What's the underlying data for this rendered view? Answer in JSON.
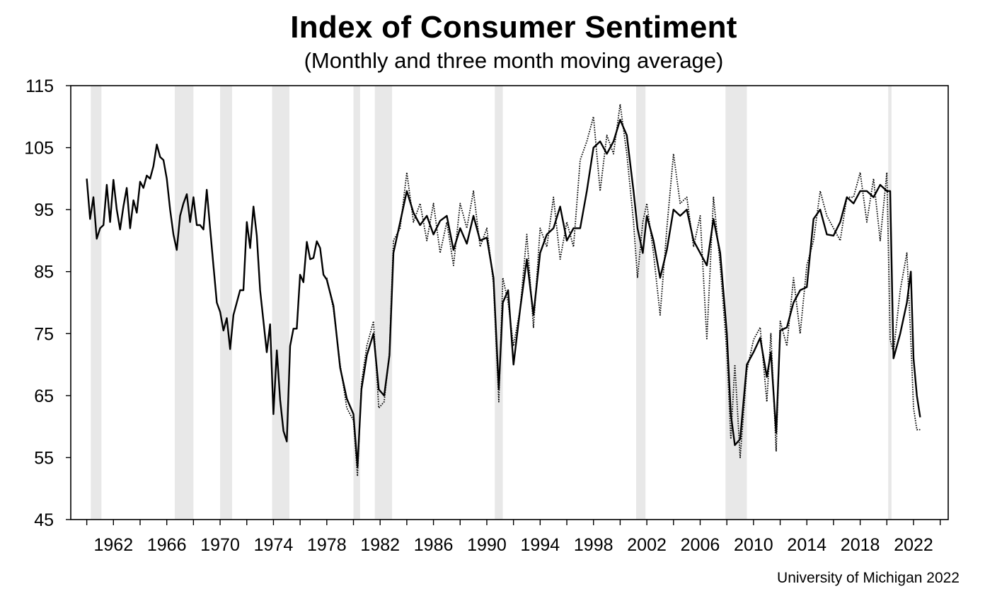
{
  "chart_data": {
    "type": "line",
    "title": "Index of Consumer Sentiment",
    "subtitle": "(Monthly and three month moving average)",
    "source": "University of Michigan 2022",
    "xlim": [
      1958.8,
      2024.6
    ],
    "ylim": [
      45,
      115
    ],
    "y_ticks": [
      45,
      55,
      65,
      75,
      85,
      95,
      105,
      115
    ],
    "x_ticks": [
      1962,
      1966,
      1970,
      1974,
      1978,
      1982,
      1986,
      1990,
      1994,
      1998,
      2002,
      2006,
      2010,
      2014,
      2018,
      2022
    ],
    "x_minor_ticks": [
      1960,
      1964,
      1968,
      1972,
      1976,
      1980,
      1984,
      1988,
      1992,
      1996,
      2000,
      2004,
      2008,
      2012,
      2016,
      2020,
      2024
    ],
    "grid": false,
    "legend": "none",
    "recessions": [
      [
        1960.3,
        1961.1
      ],
      [
        1966.6,
        1968.0
      ],
      [
        1970.0,
        1970.9
      ],
      [
        1973.9,
        1975.2
      ],
      [
        1980.0,
        1980.5
      ],
      [
        1981.6,
        1982.9
      ],
      [
        1990.6,
        1991.2
      ],
      [
        2001.2,
        2001.9
      ],
      [
        2007.9,
        2009.5
      ],
      [
        2020.1,
        2020.35
      ]
    ],
    "series": [
      {
        "style": "solid",
        "x": [
          1960.0,
          1960.25,
          1960.5,
          1960.75,
          1961.0,
          1961.25,
          1961.5,
          1961.75,
          1962.0,
          1962.25,
          1962.5,
          1962.75,
          1963.0,
          1963.25,
          1963.5,
          1963.75,
          1964.0,
          1964.25,
          1964.5,
          1964.75,
          1965.0,
          1965.25,
          1965.5,
          1965.75,
          1966.0,
          1966.25,
          1966.5,
          1966.75,
          1967.0,
          1967.25,
          1967.5,
          1967.75,
          1968.0,
          1968.25,
          1968.5,
          1968.75,
          1969.0,
          1969.25,
          1969.5,
          1969.75,
          1970.0,
          1970.25,
          1970.5,
          1970.75,
          1971.0,
          1971.25,
          1971.5,
          1971.75,
          1972.0,
          1972.25,
          1972.5,
          1972.75,
          1973.0,
          1973.25,
          1973.5,
          1973.75,
          1974.0,
          1974.25,
          1974.5,
          1974.75,
          1975.0,
          1975.25,
          1975.5,
          1975.75,
          1976.0,
          1976.25,
          1976.5,
          1976.75,
          1977.0,
          1977.25,
          1977.5,
          1977.75,
          1978.0,
          1978.5,
          1979.0,
          1979.5,
          1980.0,
          1980.3,
          1980.6,
          1981.0,
          1981.5,
          1981.9,
          1982.3,
          1982.7,
          1983.0,
          1983.5,
          1984.0,
          1984.5,
          1985.0,
          1985.5,
          1986.0,
          1986.5,
          1987.0,
          1987.5,
          1988.0,
          1988.5,
          1989.0,
          1989.5,
          1990.0,
          1990.5,
          1990.9,
          1991.2,
          1991.6,
          1992.0,
          1992.5,
          1993.0,
          1993.5,
          1994.0,
          1994.5,
          1995.0,
          1995.5,
          1996.0,
          1996.5,
          1997.0,
          1997.5,
          1998.0,
          1998.5,
          1999.0,
          1999.5,
          2000.0,
          2000.5,
          2001.0,
          2001.3,
          2001.7,
          2002.0,
          2002.5,
          2003.0,
          2003.5,
          2004.0,
          2004.5,
          2005.0,
          2005.5,
          2006.0,
          2006.5,
          2007.0,
          2007.5,
          2008.0,
          2008.3,
          2008.6,
          2009.0,
          2009.5,
          2010.0,
          2010.5,
          2011.0,
          2011.3,
          2011.7,
          2012.0,
          2012.5,
          2013.0,
          2013.5,
          2014.0,
          2014.5,
          2015.0,
          2015.5,
          2016.0,
          2016.5,
          2017.0,
          2017.5,
          2018.0,
          2018.5,
          2019.0,
          2019.5,
          2020.0,
          2020.25,
          2020.5,
          2021.0,
          2021.5,
          2021.8,
          2022.0,
          2022.25,
          2022.5
        ],
        "values": [
          100,
          93.5,
          97,
          90.3,
          92,
          92.5,
          99,
          93,
          99.8,
          95,
          91.8,
          95.5,
          98.5,
          92,
          96.5,
          94.5,
          99.5,
          98.5,
          100.5,
          100,
          102,
          105.5,
          103.5,
          103,
          100,
          95,
          91,
          88.5,
          94,
          96,
          97.5,
          93,
          97,
          92.5,
          92.5,
          91.8,
          98.2,
          92,
          86,
          80,
          78.5,
          75.5,
          77.5,
          72.5,
          78,
          80,
          82,
          82,
          93,
          88.8,
          95.5,
          90.8,
          82,
          77,
          72,
          76.5,
          62,
          72.3,
          64.3,
          59.3,
          57.6,
          73,
          75.8,
          75.8,
          84.5,
          83.3,
          89.8,
          87,
          87.2,
          89.9,
          88.8,
          84.5,
          83.7,
          79.5,
          69.5,
          64.5,
          62,
          53.5,
          66,
          71.5,
          75,
          66,
          65,
          71.5,
          88,
          93,
          98,
          94.5,
          92.5,
          94,
          91,
          93.2,
          94,
          88.5,
          92,
          89.5,
          94,
          90,
          90.5,
          84,
          66,
          80,
          82,
          70,
          79,
          87,
          78,
          88,
          91,
          92,
          95.5,
          90,
          92,
          92,
          98,
          105,
          106,
          104,
          106,
          109.5,
          107,
          98,
          92,
          88,
          94,
          90,
          84,
          88.5,
          95,
          94,
          95,
          90,
          88,
          86,
          93.5,
          88,
          75,
          62,
          57,
          58,
          70,
          72,
          74.3,
          68,
          72,
          59,
          75.5,
          76,
          80,
          82,
          82.5,
          93.5,
          95,
          91,
          90.8,
          93,
          97,
          96,
          98,
          98,
          97,
          99,
          98,
          98,
          71,
          75,
          80,
          85,
          71,
          65,
          61.5
        ]
      },
      {
        "style": "dotted",
        "x": [
          1978.0,
          1978.5,
          1979.0,
          1979.5,
          1980.0,
          1980.3,
          1980.6,
          1981.0,
          1981.5,
          1981.9,
          1982.3,
          1982.7,
          1983.0,
          1983.5,
          1984.0,
          1984.5,
          1985.0,
          1985.5,
          1986.0,
          1986.5,
          1987.0,
          1987.5,
          1988.0,
          1988.5,
          1989.0,
          1989.5,
          1990.0,
          1990.5,
          1990.9,
          1991.2,
          1991.6,
          1992.0,
          1992.5,
          1993.0,
          1993.5,
          1994.0,
          1994.5,
          1995.0,
          1995.5,
          1996.0,
          1996.5,
          1997.0,
          1997.5,
          1998.0,
          1998.5,
          1999.0,
          1999.5,
          2000.0,
          2000.5,
          2001.0,
          2001.3,
          2001.7,
          2002.0,
          2002.5,
          2003.0,
          2003.5,
          2004.0,
          2004.5,
          2005.0,
          2005.5,
          2006.0,
          2006.5,
          2007.0,
          2007.5,
          2008.0,
          2008.3,
          2008.6,
          2009.0,
          2009.5,
          2010.0,
          2010.5,
          2011.0,
          2011.3,
          2011.7,
          2012.0,
          2012.5,
          2013.0,
          2013.5,
          2014.0,
          2014.5,
          2015.0,
          2015.5,
          2016.0,
          2016.5,
          2017.0,
          2017.5,
          2018.0,
          2018.5,
          2019.0,
          2019.5,
          2020.0,
          2020.25,
          2020.5,
          2021.0,
          2021.5,
          2021.8,
          2022.0,
          2022.25,
          2022.5
        ],
        "values": [
          84,
          79,
          70,
          63,
          61,
          52,
          67,
          73,
          77,
          63,
          64,
          72,
          90,
          92,
          101,
          93,
          96,
          90,
          96,
          88,
          93,
          86,
          96,
          92,
          98,
          89,
          92,
          83,
          64,
          84,
          80,
          73,
          79,
          91,
          76,
          92,
          89,
          97,
          87,
          93,
          89,
          103,
          106,
          110,
          98,
          107,
          104,
          112,
          104,
          93,
          84,
          93,
          96,
          88,
          78,
          92,
          104,
          96,
          97,
          89,
          94,
          74,
          97,
          86,
          72,
          58,
          70,
          55,
          69,
          74,
          76,
          64,
          75,
          56,
          77,
          73,
          84,
          75,
          86,
          90,
          98,
          94,
          92,
          90,
          97,
          97,
          101,
          93,
          100,
          90,
          101,
          74,
          72,
          82,
          88,
          74,
          63,
          59.5,
          59.5
        ]
      }
    ]
  }
}
